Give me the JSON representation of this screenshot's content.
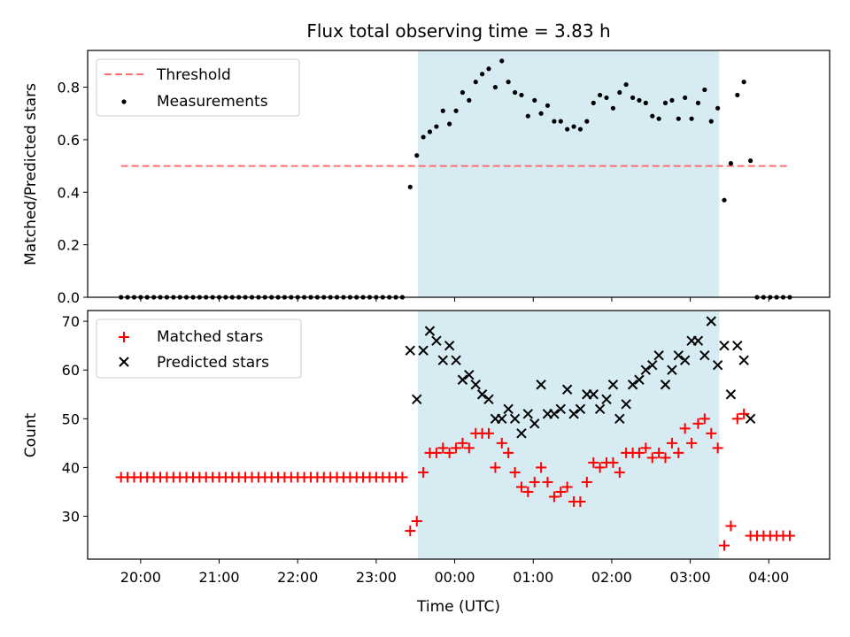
{
  "chart_data": {
    "title": "Flux total observing time = 3.83 h",
    "xlabel": "Time (UTC)",
    "x_tick_labels": [
      "20:00",
      "21:00",
      "22:00",
      "23:00",
      "00:00",
      "01:00",
      "02:00",
      "03:00",
      "04:00"
    ],
    "x_tick_hours": [
      20,
      21,
      22,
      23,
      24,
      25,
      26,
      27,
      28
    ],
    "xlim_hours": [
      19.325,
      28.775
    ],
    "shaded_interval_hours": [
      23.53,
      27.37
    ],
    "shade_color": "#add8e6",
    "panels": [
      {
        "type": "scatter",
        "ylabel": "Matched/Predicted stars",
        "ylim": [
          0,
          0.94
        ],
        "y_ticks": [
          0.0,
          0.2,
          0.4,
          0.6,
          0.8
        ],
        "y_tick_labels": [
          "0.0",
          "0.2",
          "0.4",
          "0.6",
          "0.8"
        ],
        "legend": [
          "Threshold",
          "Measurements"
        ],
        "threshold": {
          "name": "Threshold",
          "value": 0.5,
          "x_range_hours": [
            19.75,
            28.25
          ],
          "color": "#ff6f6f"
        },
        "series": [
          {
            "name": "Measurements",
            "color": "#000000",
            "x_hours": [
              19.75,
              19.833,
              19.917,
              20.0,
              20.083,
              20.167,
              20.25,
              20.333,
              20.417,
              20.5,
              20.583,
              20.667,
              20.75,
              20.833,
              20.917,
              21.0,
              21.083,
              21.167,
              21.25,
              21.333,
              21.417,
              21.5,
              21.583,
              21.667,
              21.75,
              21.833,
              21.917,
              22.0,
              22.083,
              22.167,
              22.25,
              22.333,
              22.417,
              22.5,
              22.583,
              22.667,
              22.75,
              22.833,
              22.917,
              23.0,
              23.083,
              23.167,
              23.25,
              23.333,
              23.433,
              23.517,
              23.6,
              23.683,
              23.767,
              23.85,
              23.933,
              24.017,
              24.1,
              24.183,
              24.267,
              24.35,
              24.433,
              24.517,
              24.6,
              24.683,
              24.767,
              24.85,
              24.933,
              25.017,
              25.1,
              25.183,
              25.267,
              25.35,
              25.433,
              25.517,
              25.6,
              25.683,
              25.767,
              25.85,
              25.933,
              26.017,
              26.1,
              26.183,
              26.267,
              26.35,
              26.433,
              26.517,
              26.6,
              26.683,
              26.767,
              26.85,
              26.933,
              27.017,
              27.1,
              27.183,
              27.267,
              27.35,
              27.433,
              27.517,
              27.6,
              27.683,
              27.767,
              27.85,
              27.933,
              28.017,
              28.1,
              28.183,
              28.267
            ],
            "y": [
              0,
              0,
              0,
              0,
              0,
              0,
              0,
              0,
              0,
              0,
              0,
              0,
              0,
              0,
              0,
              0,
              0,
              0,
              0,
              0,
              0,
              0,
              0,
              0,
              0,
              0,
              0,
              0,
              0,
              0,
              0,
              0,
              0,
              0,
              0,
              0,
              0,
              0,
              0,
              0,
              0,
              0,
              0,
              0,
              0.42,
              0.54,
              0.61,
              0.63,
              0.65,
              0.71,
              0.66,
              0.71,
              0.78,
              0.75,
              0.82,
              0.85,
              0.87,
              0.8,
              0.9,
              0.82,
              0.78,
              0.77,
              0.69,
              0.75,
              0.7,
              0.73,
              0.67,
              0.67,
              0.64,
              0.65,
              0.64,
              0.67,
              0.74,
              0.77,
              0.76,
              0.72,
              0.78,
              0.81,
              0.76,
              0.75,
              0.74,
              0.69,
              0.68,
              0.74,
              0.75,
              0.68,
              0.76,
              0.68,
              0.74,
              0.79,
              0.67,
              0.72,
              0.37,
              0.51,
              0.77,
              0.82,
              0.52,
              0,
              0,
              0,
              0,
              0,
              0
            ]
          }
        ]
      },
      {
        "type": "scatter",
        "ylabel": "Count",
        "ylim": [
          21.2,
          72.2
        ],
        "y_ticks": [
          30,
          40,
          50,
          60,
          70
        ],
        "y_tick_labels": [
          "30",
          "40",
          "50",
          "60",
          "70"
        ],
        "legend": [
          "Matched stars",
          "Predicted stars"
        ],
        "series": [
          {
            "name": "Matched stars",
            "color": "#ff0000",
            "marker": "plus",
            "x_hours": [
              19.75,
              19.833,
              19.917,
              20.0,
              20.083,
              20.167,
              20.25,
              20.333,
              20.417,
              20.5,
              20.583,
              20.667,
              20.75,
              20.833,
              20.917,
              21.0,
              21.083,
              21.167,
              21.25,
              21.333,
              21.417,
              21.5,
              21.583,
              21.667,
              21.75,
              21.833,
              21.917,
              22.0,
              22.083,
              22.167,
              22.25,
              22.333,
              22.417,
              22.5,
              22.583,
              22.667,
              22.75,
              22.833,
              22.917,
              23.0,
              23.083,
              23.167,
              23.25,
              23.333,
              23.433,
              23.517,
              23.6,
              23.683,
              23.767,
              23.85,
              23.933,
              24.017,
              24.1,
              24.183,
              24.267,
              24.35,
              24.433,
              24.517,
              24.6,
              24.683,
              24.767,
              24.85,
              24.933,
              25.017,
              25.1,
              25.183,
              25.267,
              25.35,
              25.433,
              25.517,
              25.6,
              25.683,
              25.767,
              25.85,
              25.933,
              26.017,
              26.1,
              26.183,
              26.267,
              26.35,
              26.433,
              26.517,
              26.6,
              26.683,
              26.767,
              26.85,
              26.933,
              27.017,
              27.1,
              27.183,
              27.267,
              27.35,
              27.433,
              27.517,
              27.6,
              27.683,
              27.767,
              27.85,
              27.933,
              28.017,
              28.1,
              28.183,
              28.267
            ],
            "y": [
              38,
              38,
              38,
              38,
              38,
              38,
              38,
              38,
              38,
              38,
              38,
              38,
              38,
              38,
              38,
              38,
              38,
              38,
              38,
              38,
              38,
              38,
              38,
              38,
              38,
              38,
              38,
              38,
              38,
              38,
              38,
              38,
              38,
              38,
              38,
              38,
              38,
              38,
              38,
              38,
              38,
              38,
              38,
              38,
              27,
              29,
              39,
              43,
              43,
              44,
              43,
              44,
              45,
              44,
              47,
              47,
              47,
              40,
              45,
              43,
              39,
              36,
              35,
              37,
              40,
              37,
              34,
              35,
              36,
              33,
              33,
              37,
              41,
              40,
              41,
              41,
              39,
              43,
              43,
              43,
              44,
              42,
              43,
              42,
              45,
              43,
              48,
              45,
              49,
              50,
              47,
              44,
              24,
              28,
              50,
              51,
              26,
              26,
              26,
              26,
              26,
              26,
              26
            ]
          },
          {
            "name": "Predicted stars",
            "color": "#000000",
            "marker": "x",
            "x_hours": [
              23.433,
              23.517,
              23.6,
              23.683,
              23.767,
              23.85,
              23.933,
              24.017,
              24.1,
              24.183,
              24.267,
              24.35,
              24.433,
              24.517,
              24.6,
              24.683,
              24.767,
              24.85,
              24.933,
              25.017,
              25.1,
              25.183,
              25.267,
              25.35,
              25.433,
              25.517,
              25.6,
              25.683,
              25.767,
              25.85,
              25.933,
              26.017,
              26.1,
              26.183,
              26.267,
              26.35,
              26.433,
              26.517,
              26.6,
              26.683,
              26.767,
              26.85,
              26.933,
              27.017,
              27.1,
              27.183,
              27.267,
              27.35,
              27.433,
              27.517,
              27.6,
              27.683,
              27.767
            ],
            "y": [
              64,
              54,
              64,
              68,
              66,
              62,
              65,
              62,
              58,
              59,
              57,
              55,
              54,
              50,
              50,
              52,
              50,
              47,
              51,
              49,
              57,
              51,
              51,
              52,
              56,
              51,
              52,
              55,
              55,
              52,
              54,
              57,
              50,
              53,
              57,
              58,
              60,
              61,
              63,
              57,
              60,
              63,
              62,
              66,
              66,
              63,
              70,
              61,
              65,
              55,
              65,
              62,
              50
            ]
          }
        ]
      }
    ]
  }
}
